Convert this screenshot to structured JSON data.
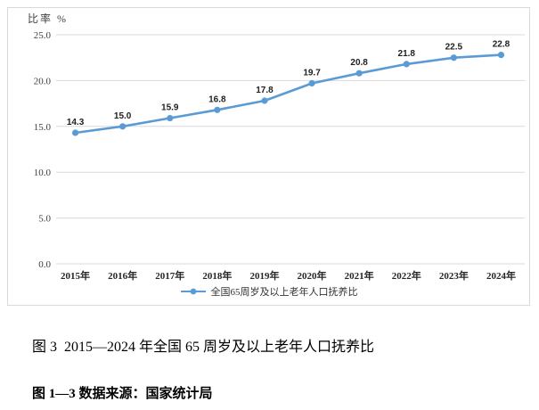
{
  "page": {
    "caption_fig3": "图 3  2015—2024 年全国 65 周岁及以上老年人口抚养比",
    "source_note": "图 1—3 数据来源：国家统计局"
  },
  "chart_data": {
    "type": "line",
    "title": "",
    "ylabel": "比率 %",
    "xlabel": "",
    "categories": [
      "2015年",
      "2016年",
      "2017年",
      "2018年",
      "2019年",
      "2020年",
      "2021年",
      "2022年",
      "2023年",
      "2024年"
    ],
    "series": [
      {
        "name": "全国65周岁及以上老年人口抚养比",
        "values": [
          14.3,
          15.0,
          15.9,
          16.8,
          17.8,
          19.7,
          20.8,
          21.8,
          22.5,
          22.8
        ]
      }
    ],
    "ylim": [
      0,
      25
    ],
    "ytick_step": 5,
    "ytick_labels": [
      "0.0",
      "5.0",
      "10.0",
      "15.0",
      "20.0",
      "25.0"
    ],
    "grid": true,
    "legend_position": "bottom",
    "colors": {
      "line": "#5B9BD5",
      "marker": "#5B9BD5",
      "grid": "#d9d9d9",
      "frame_border": "#d9d9d9",
      "tick_text": "#404040",
      "data_label": "#1f1f1f"
    }
  }
}
